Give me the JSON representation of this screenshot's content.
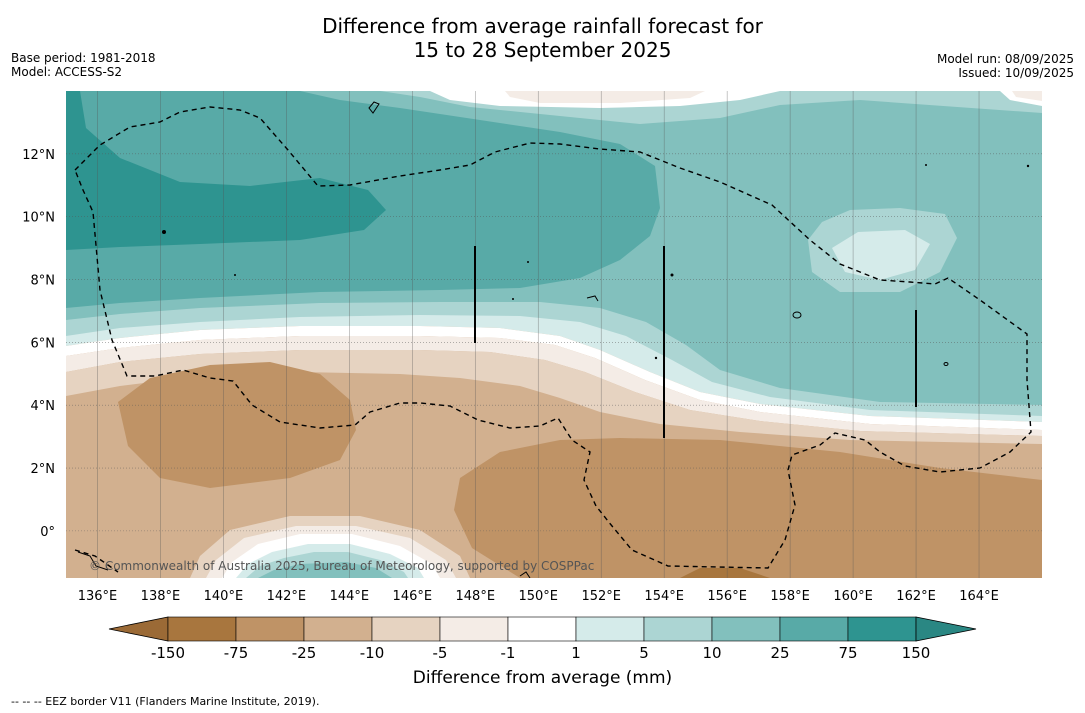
{
  "title_line1": "Difference from average rainfall forecast for",
  "title_line2": "15 to 28 September 2025",
  "base_period": "Base period: 1981-2018",
  "model": "Model: ACCESS-S2",
  "model_run": "Model run: 08/09/2025",
  "issued": "Issued: 10/09/2025",
  "copyright": "© Commonwealth of Australia 2025, Bureau of Meteorology, supported by COSPPac",
  "footer": "--  --  -- EEZ border V11 (Flanders Marine Institute, 2019).",
  "colorbar": {
    "title": "Difference from average (mm)",
    "ticks": [
      "-150",
      "-75",
      "-25",
      "-10",
      "-5",
      "-1",
      "1",
      "5",
      "10",
      "25",
      "75",
      "150"
    ],
    "colors": [
      "#a8763e",
      "#bf9366",
      "#d2b08f",
      "#e6d3c1",
      "#f4ece6",
      "#ffffff",
      "#d5ebea",
      "#acd5d3",
      "#82c0bd",
      "#58aaa7",
      "#2e9490"
    ],
    "under_color": "#9b6a36",
    "over_color": "#2a8783"
  },
  "map": {
    "lon_labels": [
      {
        "lon": 136,
        "label": "136°E"
      },
      {
        "lon": 138,
        "label": "138°E"
      },
      {
        "lon": 140,
        "label": "140°E"
      },
      {
        "lon": 142,
        "label": "142°E"
      },
      {
        "lon": 144,
        "label": "144°E"
      },
      {
        "lon": 146,
        "label": "146°E"
      },
      {
        "lon": 148,
        "label": "148°E"
      },
      {
        "lon": 150,
        "label": "150°E"
      },
      {
        "lon": 152,
        "label": "152°E"
      },
      {
        "lon": 154,
        "label": "154°E"
      },
      {
        "lon": 156,
        "label": "156°E"
      },
      {
        "lon": 158,
        "label": "158°E"
      },
      {
        "lon": 160,
        "label": "160°E"
      },
      {
        "lon": 162,
        "label": "162°E"
      },
      {
        "lon": 164,
        "label": "164°E"
      }
    ],
    "lat_labels": [
      {
        "lat": 12,
        "label": "12°N"
      },
      {
        "lat": 10,
        "label": "10°N"
      },
      {
        "lat": 8,
        "label": "8°N"
      },
      {
        "lat": 6,
        "label": "6°N"
      },
      {
        "lat": 4,
        "label": "4°N"
      },
      {
        "lat": 2,
        "label": "2°N"
      },
      {
        "lat": 0,
        "label": "0°"
      }
    ],
    "lon_range": [
      135,
      166
    ],
    "lat_range": [
      -1.5,
      14
    ],
    "gridlines": true,
    "eez_style": "dashed"
  }
}
